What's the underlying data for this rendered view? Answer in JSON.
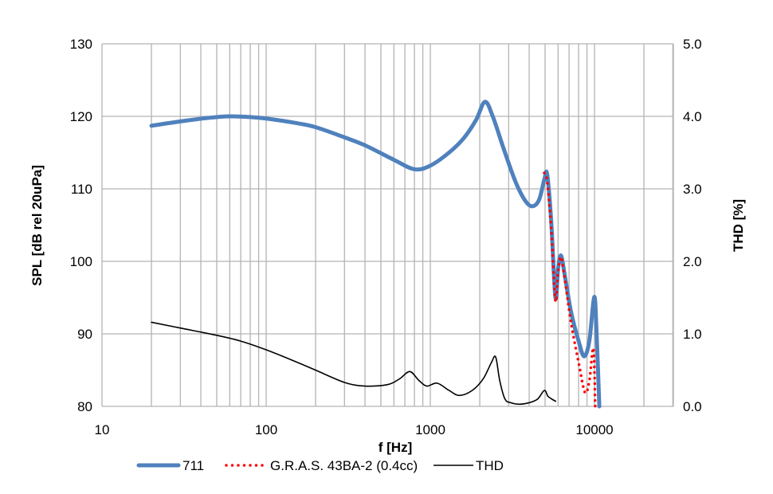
{
  "chart_data": {
    "type": "line",
    "title": "",
    "xlabel": "f [Hz]",
    "ylabel": "SPL [dB rel 20uPa]",
    "y2label": "THD [%]",
    "xscale": "log",
    "xlim": [
      10,
      30000
    ],
    "ylim": [
      80,
      130
    ],
    "y2lim": [
      0,
      5
    ],
    "grid": true,
    "legend_position": "bottom",
    "xticks": [
      "10",
      "100",
      "1000",
      "10000"
    ],
    "yticks": [
      "80",
      "90",
      "100",
      "110",
      "120",
      "130"
    ],
    "y2ticks": [
      "0.0",
      "1.0",
      "2.0",
      "3.0",
      "4.0",
      "5.0"
    ],
    "series": [
      {
        "name": "711",
        "axis": "left",
        "color": "#4f81bd",
        "style": "solid-thick",
        "x": [
          20,
          30,
          45,
          60,
          80,
          100,
          150,
          200,
          300,
          400,
          600,
          800,
          1000,
          1300,
          1600,
          1900,
          2150,
          2400,
          2800,
          3300,
          3800,
          4200,
          4600,
          4950,
          5150,
          5450,
          5780,
          6000,
          6250,
          6600,
          7200,
          8000,
          8650,
          9300,
          9970,
          10300,
          10700
        ],
        "y": [
          118.7,
          119.3,
          119.8,
          120.0,
          119.9,
          119.7,
          119.1,
          118.5,
          117.1,
          116.0,
          114.0,
          112.7,
          113.2,
          115.0,
          117.0,
          119.5,
          122.0,
          120.0,
          115.5,
          111.0,
          108.3,
          107.6,
          108.5,
          111.3,
          112.0,
          105.5,
          95.0,
          99.0,
          100.8,
          98.0,
          93.0,
          89.0,
          86.9,
          89.0,
          95.1,
          90.0,
          80.0
        ]
      },
      {
        "name": "G.R.A.S. 43BA-2 (0.4cc)",
        "axis": "left",
        "color": "#ff0000",
        "style": "dotted",
        "x": [
          4945,
          5150,
          5450,
          5780,
          6000,
          6250,
          6600,
          7200,
          8090,
          8760,
          9300,
          9850,
          10100
        ],
        "y": [
          112.2,
          111.0,
          104.5,
          94.6,
          98.5,
          100.6,
          97.5,
          91.5,
          85.5,
          81.9,
          83.5,
          88.0,
          80.0
        ]
      },
      {
        "name": "THD",
        "axis": "right",
        "color": "#000000",
        "style": "solid-thin",
        "x": [
          20,
          30,
          50,
          70,
          100,
          150,
          200,
          300,
          400,
          550,
          650,
          750,
          850,
          950,
          1100,
          1300,
          1500,
          1800,
          2100,
          2350,
          2500,
          2650,
          2850,
          3100,
          3500,
          4000,
          4500,
          4950,
          5200,
          5500,
          5800
        ],
        "y": [
          1.16,
          1.08,
          0.98,
          0.9,
          0.78,
          0.62,
          0.5,
          0.33,
          0.28,
          0.3,
          0.38,
          0.48,
          0.36,
          0.28,
          0.32,
          0.22,
          0.15,
          0.22,
          0.38,
          0.6,
          0.68,
          0.35,
          0.1,
          0.05,
          0.03,
          0.05,
          0.1,
          0.22,
          0.14,
          0.1,
          0.07
        ]
      }
    ]
  }
}
